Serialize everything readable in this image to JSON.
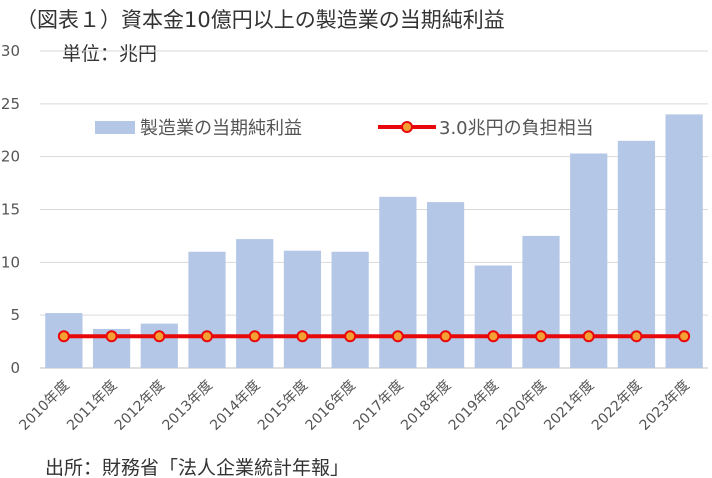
{
  "chart_data": {
    "type": "bar",
    "title": "（図表１）資本金10億円以上の製造業の当期純利益",
    "unit_label": "単位：兆円",
    "source": "出所：財務省「法人企業統計年報」",
    "categories": [
      "2010年度",
      "2011年度",
      "2012年度",
      "2013年度",
      "2014年度",
      "2015年度",
      "2016年度",
      "2017年度",
      "2018年度",
      "2019年度",
      "2020年度",
      "2021年度",
      "2022年度",
      "2023年度"
    ],
    "series": [
      {
        "name": "製造業の当期純利益",
        "type": "bar",
        "color": "#b4c7e7",
        "values": [
          5.2,
          3.7,
          4.2,
          11.0,
          12.2,
          11.1,
          11.0,
          16.2,
          15.7,
          9.7,
          12.5,
          20.3,
          21.5,
          24.0
        ]
      },
      {
        "name": "3.0兆円の負担相当",
        "type": "line",
        "color": "#e8080c",
        "marker_color": "#f4a032",
        "values": [
          3.0,
          3.0,
          3.0,
          3.0,
          3.0,
          3.0,
          3.0,
          3.0,
          3.0,
          3.0,
          3.0,
          3.0,
          3.0,
          3.0
        ]
      }
    ],
    "ylim": [
      0,
      30
    ],
    "yticks": [
      0,
      5,
      10,
      15,
      20,
      25,
      30
    ],
    "grid": true,
    "legend_position": "top"
  }
}
